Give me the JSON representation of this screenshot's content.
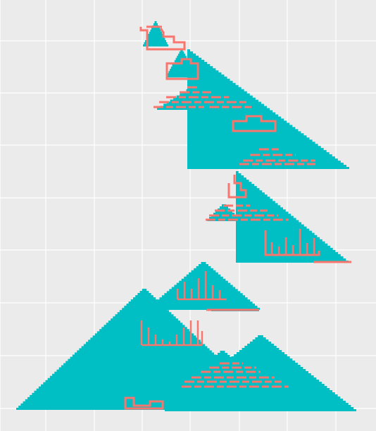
{
  "colors": {
    "background": "#ebebeb",
    "grid": "#ffffff",
    "triangle_fill": "#00bfc4",
    "outline": "#f8766d"
  },
  "grid": true,
  "shapes": [
    "stepped-triangle",
    "stepped-outline"
  ]
}
